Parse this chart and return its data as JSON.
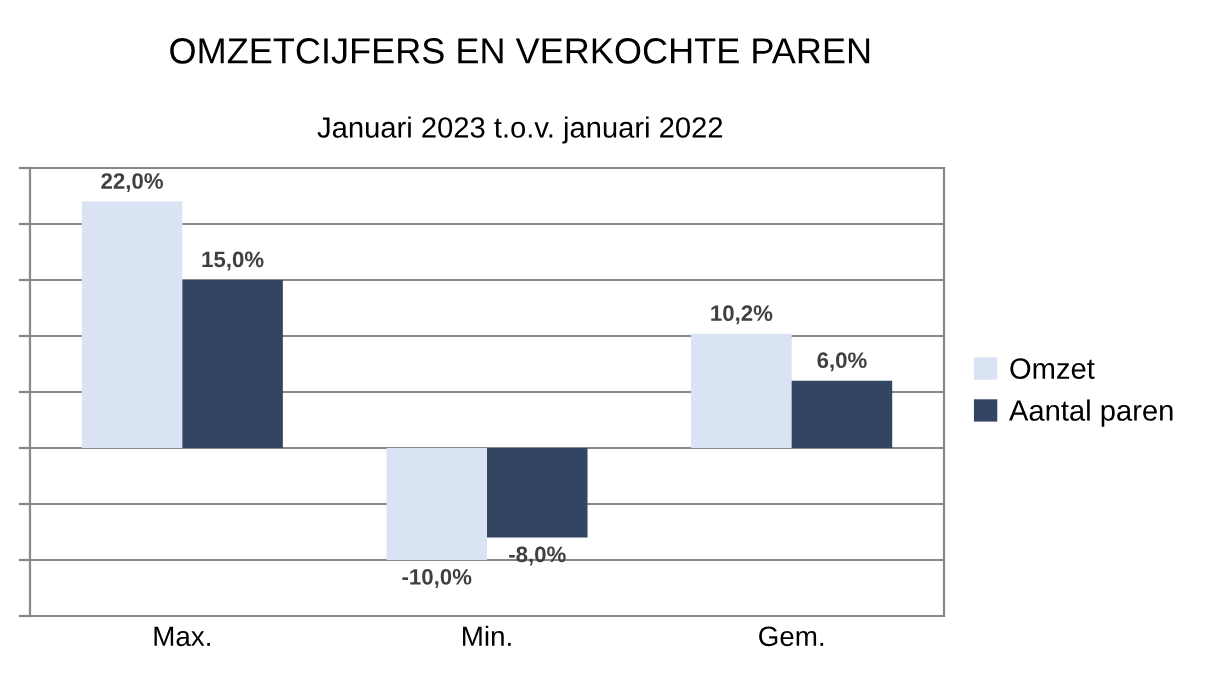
{
  "chart_data": {
    "type": "bar",
    "title": "OMZETCIJFERS EN VERKOCHTE PAREN",
    "subtitle": "Januari 2023 t.o.v. januari 2022",
    "categories": [
      "Max.",
      "Min.",
      "Gem."
    ],
    "series": [
      {
        "name": "Omzet",
        "color": "#dae3f3",
        "values": [
          22.0,
          -10.0,
          10.2
        ],
        "value_labels": [
          "22,0%",
          "-10,0%",
          "10,2%"
        ]
      },
      {
        "name": "Aantal paren",
        "color": "#344563",
        "values": [
          15.0,
          -8.0,
          6.0
        ],
        "value_labels": [
          "15,0%",
          "-8,0%",
          "6,0%"
        ]
      }
    ],
    "ylim": [
      -15,
      25
    ],
    "yticks": [
      {
        "value": -15,
        "label": null
      },
      {
        "value": -10,
        "label": null
      },
      {
        "value": -5,
        "label": null
      },
      {
        "value": 0,
        "label": null
      },
      {
        "value": 5,
        "label": null
      },
      {
        "value": 10,
        "label": null
      },
      {
        "value": 15,
        "label": null
      },
      {
        "value": 20,
        "label": null
      },
      {
        "value": 25,
        "label": null
      }
    ],
    "grid": "y",
    "legend": "right",
    "tick_labels": "x"
  }
}
